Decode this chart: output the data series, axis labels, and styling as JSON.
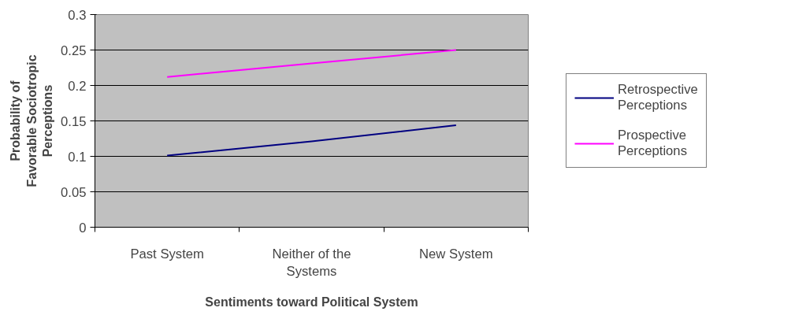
{
  "chart_data": {
    "type": "line",
    "xlabel": "Sentiments toward Political System",
    "ylabel": "Probability of Favorable Sociotropic Perceptions",
    "categories": [
      "Past System",
      "Neither of the Systems",
      "New System"
    ],
    "series": [
      {
        "name": "Retrospective Perceptions",
        "color": "#000080",
        "values": [
          0.101,
          0.121,
          0.144
        ]
      },
      {
        "name": "Prospective Perceptions",
        "color": "#ff00ff",
        "values": [
          0.212,
          0.231,
          0.25
        ]
      }
    ],
    "ylim": [
      0,
      0.3
    ],
    "yticks": [
      0,
      0.05,
      0.1,
      0.15,
      0.2,
      0.25,
      0.3
    ],
    "grid": "y",
    "legend": "right",
    "marker": "none",
    "line_style": "solid"
  }
}
